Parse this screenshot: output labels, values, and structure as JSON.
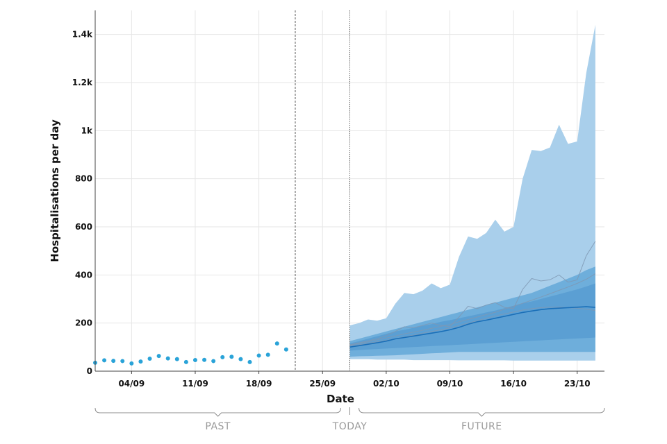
{
  "chart_data": {
    "type": "area",
    "title": "",
    "xlabel": "Date",
    "ylabel": "Hospitalisations per day",
    "ylim": [
      0,
      1500
    ],
    "grid": true,
    "y_ticks": [
      {
        "value": 0,
        "label": "0"
      },
      {
        "value": 200,
        "label": "200"
      },
      {
        "value": 400,
        "label": "400"
      },
      {
        "value": 600,
        "label": "600"
      },
      {
        "value": 800,
        "label": "800"
      },
      {
        "value": 1000,
        "label": "1k"
      },
      {
        "value": 1200,
        "label": "1.2k"
      },
      {
        "value": 1400,
        "label": "1.4k"
      }
    ],
    "x_range": [
      "2021-08-31",
      "2021-10-26"
    ],
    "x_ticks": [
      {
        "date": "2021-09-04",
        "label": "04/09"
      },
      {
        "date": "2021-09-11",
        "label": "11/09"
      },
      {
        "date": "2021-09-18",
        "label": "18/09"
      },
      {
        "date": "2021-09-25",
        "label": "25/09"
      },
      {
        "date": "2021-10-02",
        "label": "02/10"
      },
      {
        "date": "2021-10-09",
        "label": "09/10"
      },
      {
        "date": "2021-10-16",
        "label": "16/10"
      },
      {
        "date": "2021-10-23",
        "label": "23/10"
      }
    ],
    "reference_lines": [
      {
        "date": "2021-09-22"
      },
      {
        "date": "2021-09-28"
      }
    ],
    "periods": [
      {
        "label": "PAST",
        "start": "2021-08-31",
        "end": "2021-09-27"
      },
      {
        "label": "TODAY",
        "date": "2021-09-28"
      },
      {
        "label": "FUTURE",
        "start": "2021-09-29",
        "end": "2021-10-26"
      }
    ],
    "observed": {
      "color": "#2aa3d8",
      "points": [
        {
          "date": "2021-08-31",
          "value": 35
        },
        {
          "date": "2021-09-01",
          "value": 45
        },
        {
          "date": "2021-09-02",
          "value": 43
        },
        {
          "date": "2021-09-03",
          "value": 42
        },
        {
          "date": "2021-09-04",
          "value": 32
        },
        {
          "date": "2021-09-05",
          "value": 40
        },
        {
          "date": "2021-09-06",
          "value": 52
        },
        {
          "date": "2021-09-07",
          "value": 63
        },
        {
          "date": "2021-09-08",
          "value": 53
        },
        {
          "date": "2021-09-09",
          "value": 50
        },
        {
          "date": "2021-09-10",
          "value": 38
        },
        {
          "date": "2021-09-11",
          "value": 46
        },
        {
          "date": "2021-09-12",
          "value": 47
        },
        {
          "date": "2021-09-13",
          "value": 42
        },
        {
          "date": "2021-09-14",
          "value": 58
        },
        {
          "date": "2021-09-15",
          "value": 60
        },
        {
          "date": "2021-09-16",
          "value": 50
        },
        {
          "date": "2021-09-17",
          "value": 38
        },
        {
          "date": "2021-09-18",
          "value": 65
        },
        {
          "date": "2021-09-19",
          "value": 68
        },
        {
          "date": "2021-09-20",
          "value": 115
        },
        {
          "date": "2021-09-21",
          "value": 90
        }
      ]
    },
    "forecast": {
      "dates": [
        "2021-09-28",
        "2021-09-29",
        "2021-09-30",
        "2021-10-01",
        "2021-10-02",
        "2021-10-03",
        "2021-10-04",
        "2021-10-05",
        "2021-10-06",
        "2021-10-07",
        "2021-10-08",
        "2021-10-09",
        "2021-10-10",
        "2021-10-11",
        "2021-10-12",
        "2021-10-13",
        "2021-10-14",
        "2021-10-15",
        "2021-10-16",
        "2021-10-17",
        "2021-10-18",
        "2021-10-19",
        "2021-10-20",
        "2021-10-21",
        "2021-10-22",
        "2021-10-23",
        "2021-10-24",
        "2021-10-25"
      ],
      "bands": [
        {
          "color": "#a9cfeb",
          "lower": [
            50,
            50,
            50,
            48,
            48,
            48,
            48,
            46,
            46,
            46,
            46,
            46,
            45,
            45,
            45,
            45,
            45,
            45,
            44,
            44,
            44,
            44,
            44,
            44,
            44,
            44,
            44,
            44
          ],
          "upper": [
            190,
            200,
            215,
            210,
            220,
            280,
            325,
            320,
            335,
            365,
            345,
            360,
            475,
            560,
            550,
            575,
            630,
            580,
            600,
            800,
            920,
            915,
            930,
            1025,
            945,
            955,
            1240,
            1440
          ]
        },
        {
          "color": "#6eaedb",
          "lower": [
            60,
            62,
            63,
            64,
            65,
            66,
            68,
            70,
            72,
            74,
            76,
            78,
            80,
            80,
            80,
            80,
            80,
            80,
            80,
            80,
            80,
            80,
            80,
            80,
            80,
            80,
            80,
            80
          ],
          "upper": [
            125,
            135,
            145,
            155,
            165,
            175,
            185,
            195,
            205,
            215,
            225,
            235,
            245,
            255,
            265,
            275,
            285,
            295,
            305,
            315,
            325,
            340,
            355,
            370,
            385,
            400,
            420,
            435
          ]
        },
        {
          "color": "#5b9fd3",
          "lower": [
            85,
            88,
            90,
            92,
            94,
            96,
            98,
            100,
            102,
            104,
            106,
            108,
            110,
            112,
            114,
            116,
            118,
            120,
            122,
            124,
            126,
            128,
            130,
            132,
            134,
            136,
            138,
            140
          ],
          "upper": [
            115,
            125,
            135,
            145,
            155,
            165,
            172,
            180,
            188,
            196,
            205,
            212,
            220,
            228,
            236,
            244,
            252,
            262,
            272,
            282,
            290,
            300,
            310,
            320,
            330,
            340,
            352,
            365
          ]
        }
      ],
      "median": {
        "color": "#1a6fb8",
        "values": [
          100,
          106,
          112,
          118,
          125,
          134,
          140,
          146,
          152,
          158,
          164,
          172,
          182,
          195,
          205,
          212,
          220,
          228,
          236,
          244,
          250,
          256,
          260,
          262,
          264,
          266,
          268,
          265
        ]
      },
      "scenarios": [
        {
          "color": "#7f98b3",
          "values": [
            110,
            118,
            126,
            135,
            148,
            165,
            185,
            180,
            190,
            200,
            190,
            185,
            225,
            270,
            260,
            275,
            285,
            265,
            260,
            340,
            385,
            375,
            380,
            400,
            370,
            380,
            480,
            540
          ]
        },
        {
          "color": "#7f98b3",
          "values": [
            108,
            115,
            122,
            130,
            138,
            146,
            155,
            162,
            170,
            178,
            186,
            194,
            205,
            215,
            225,
            235,
            245,
            258,
            270,
            282,
            295,
            308,
            322,
            336,
            350,
            365,
            382,
            405
          ]
        },
        {
          "color": "#7f98b3",
          "values": [
            105,
            110,
            116,
            122,
            128,
            135,
            142,
            150,
            158,
            165,
            172,
            180,
            190,
            200,
            210,
            220,
            230,
            238,
            246,
            254,
            260,
            264,
            266,
            266,
            264,
            262,
            258,
            252
          ]
        }
      ]
    }
  }
}
